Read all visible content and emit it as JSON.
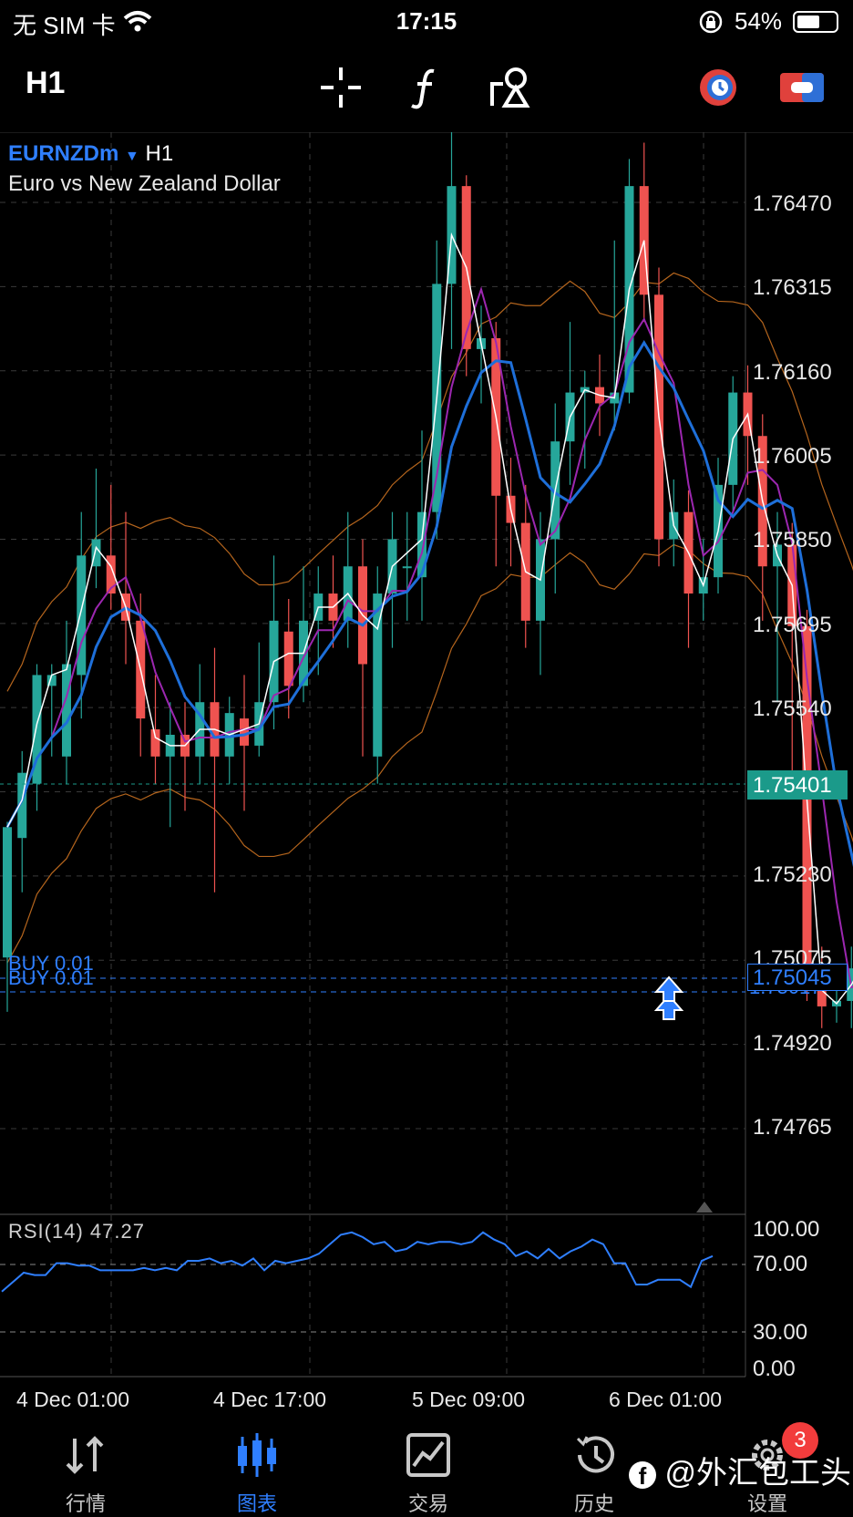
{
  "status_bar": {
    "carrier": "无 SIM 卡",
    "time": "17:15",
    "battery": "54%"
  },
  "toolbar": {
    "timeframe": "H1"
  },
  "chart": {
    "symbol": "EURNZDm",
    "symbol_timeframe": "H1",
    "description": "Euro vs New Zealand Dollar",
    "price_labels": [
      "1.76470",
      "1.76315",
      "1.76160",
      "1.76005",
      "1.75850",
      "1.75695",
      "1.75540",
      "1.75401",
      "1.75230",
      "1.75075",
      "1.75045",
      "1.75017",
      "1.74920",
      "1.74765"
    ],
    "current_price": "1.75401",
    "order_price": "1.75045",
    "order_price2": "1.75017",
    "orders": [
      "BUY 0.01",
      "BUY 0.01"
    ],
    "rsi_label": "RSI(14)",
    "rsi_value": "47.27",
    "rsi_levels": [
      "100.00",
      "70.00",
      "30.00",
      "0.00"
    ],
    "time_labels": [
      "4 Dec 01:00",
      "4 Dec 17:00",
      "5 Dec 09:00",
      "6 Dec 01:00"
    ],
    "colors": {
      "bull": "#26a69a",
      "bear": "#ef5350",
      "ma_fast": "#ffffff",
      "ma_mid": "#1e6fd9",
      "ma_slow": "#9c27b0",
      "bands": "#b5651d"
    }
  },
  "tabs": [
    {
      "label": "行情",
      "icon": "quotes-icon"
    },
    {
      "label": "图表",
      "icon": "chart-icon",
      "active": true
    },
    {
      "label": "交易",
      "icon": "trade-icon"
    },
    {
      "label": "历史",
      "icon": "history-icon"
    },
    {
      "label": "设置",
      "icon": "settings-icon"
    }
  ],
  "settings_badge": "3",
  "watermark": "@外汇包工头"
}
